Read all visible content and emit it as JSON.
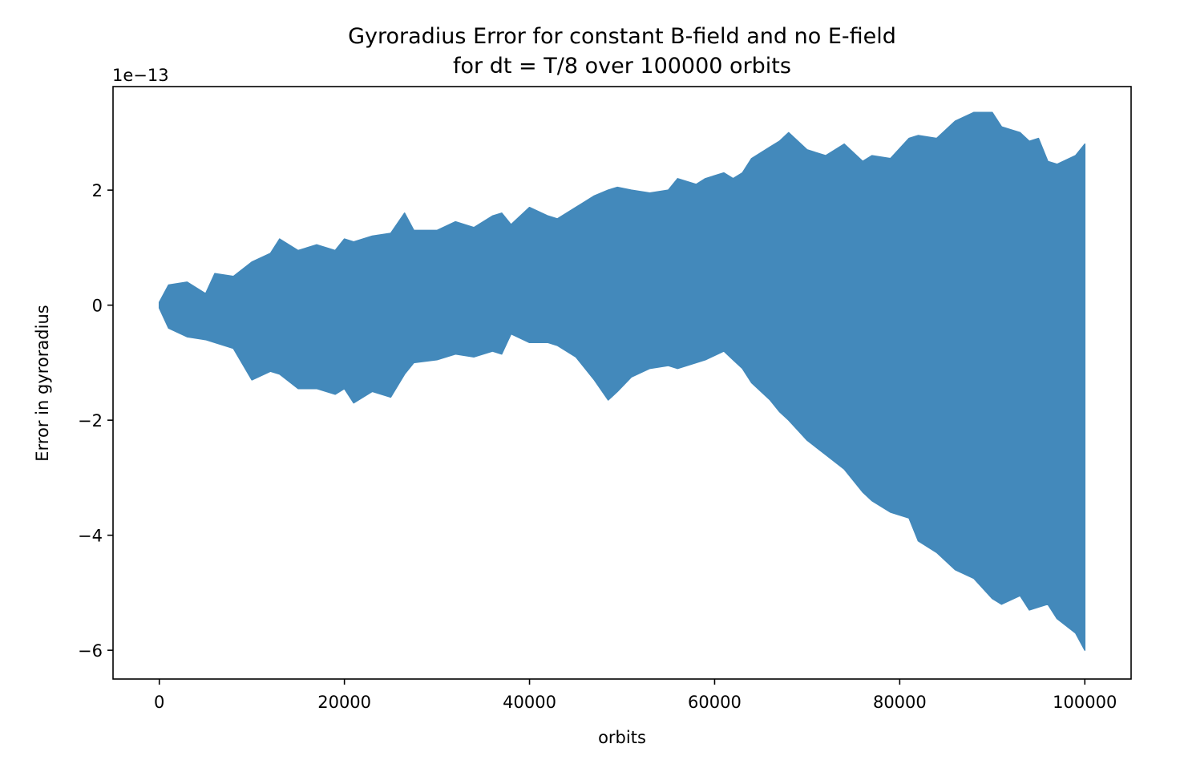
{
  "chart_data": {
    "type": "area",
    "title": "Gyroradius Error for constant B-field and no E-field",
    "subtitle": "for dt = T/8 over 100000 orbits",
    "xlabel": "orbits",
    "ylabel": "Error in gyroradius",
    "y_offset_label": "1e−13",
    "y_scale_factor": 1e-13,
    "xlim": [
      -5000,
      105000
    ],
    "ylim": [
      -6.5,
      3.8
    ],
    "x_ticks": [
      0,
      20000,
      40000,
      60000,
      80000,
      100000
    ],
    "x_tick_labels": [
      "0",
      "20000",
      "40000",
      "60000",
      "80000",
      "100000"
    ],
    "y_ticks": [
      2,
      0,
      -2,
      -4,
      -6
    ],
    "y_tick_labels": [
      "2",
      "0",
      "−2",
      "−4",
      "−6"
    ],
    "grid": false,
    "legend": "none",
    "series": [
      {
        "color": "#4389bb",
        "description_rendering": "rapidly oscillating line rendered as a filled envelope",
        "x": [
          0,
          1000,
          3000,
          5000,
          6000,
          8000,
          10000,
          12000,
          13000,
          15000,
          17000,
          19000,
          20000,
          21000,
          23000,
          25000,
          26500,
          27500,
          30000,
          32000,
          34000,
          36000,
          37000,
          38000,
          40000,
          42000,
          43000,
          45000,
          47000,
          48500,
          49500,
          51000,
          53000,
          55000,
          56000,
          58000,
          59000,
          61000,
          62000,
          63000,
          64000,
          66000,
          67000,
          68000,
          70000,
          72000,
          74000,
          76000,
          77000,
          79000,
          81000,
          82000,
          84000,
          86000,
          88000,
          90000,
          91000,
          93000,
          94000,
          95000,
          96000,
          97000,
          99000,
          100000
        ],
        "upper": [
          0.05,
          0.35,
          0.4,
          0.2,
          0.55,
          0.5,
          0.75,
          0.9,
          1.15,
          0.95,
          1.05,
          0.95,
          1.15,
          1.1,
          1.2,
          1.25,
          1.6,
          1.3,
          1.3,
          1.45,
          1.35,
          1.55,
          1.6,
          1.4,
          1.7,
          1.55,
          1.5,
          1.7,
          1.9,
          2.0,
          2.05,
          2.0,
          1.95,
          2.0,
          2.2,
          2.1,
          2.2,
          2.3,
          2.2,
          2.3,
          2.55,
          2.75,
          2.85,
          3.0,
          2.7,
          2.6,
          2.8,
          2.5,
          2.6,
          2.55,
          2.9,
          2.95,
          2.9,
          3.2,
          3.35,
          3.35,
          3.1,
          3.0,
          2.85,
          2.9,
          2.5,
          2.45,
          2.6,
          2.8
        ],
        "lower": [
          -0.05,
          -0.4,
          -0.55,
          -0.6,
          -0.65,
          -0.75,
          -1.3,
          -1.15,
          -1.2,
          -1.45,
          -1.45,
          -1.55,
          -1.45,
          -1.7,
          -1.5,
          -1.6,
          -1.2,
          -1.0,
          -0.95,
          -0.85,
          -0.9,
          -0.8,
          -0.85,
          -0.5,
          -0.65,
          -0.65,
          -0.7,
          -0.9,
          -1.3,
          -1.65,
          -1.5,
          -1.25,
          -1.1,
          -1.05,
          -1.1,
          -1.0,
          -0.95,
          -0.8,
          -0.95,
          -1.1,
          -1.35,
          -1.65,
          -1.85,
          -2.0,
          -2.35,
          -2.6,
          -2.85,
          -3.25,
          -3.4,
          -3.6,
          -3.7,
          -4.1,
          -4.3,
          -4.6,
          -4.75,
          -5.1,
          -5.2,
          -5.05,
          -5.3,
          -5.25,
          -5.2,
          -5.45,
          -5.7,
          -6.0
        ]
      }
    ]
  }
}
